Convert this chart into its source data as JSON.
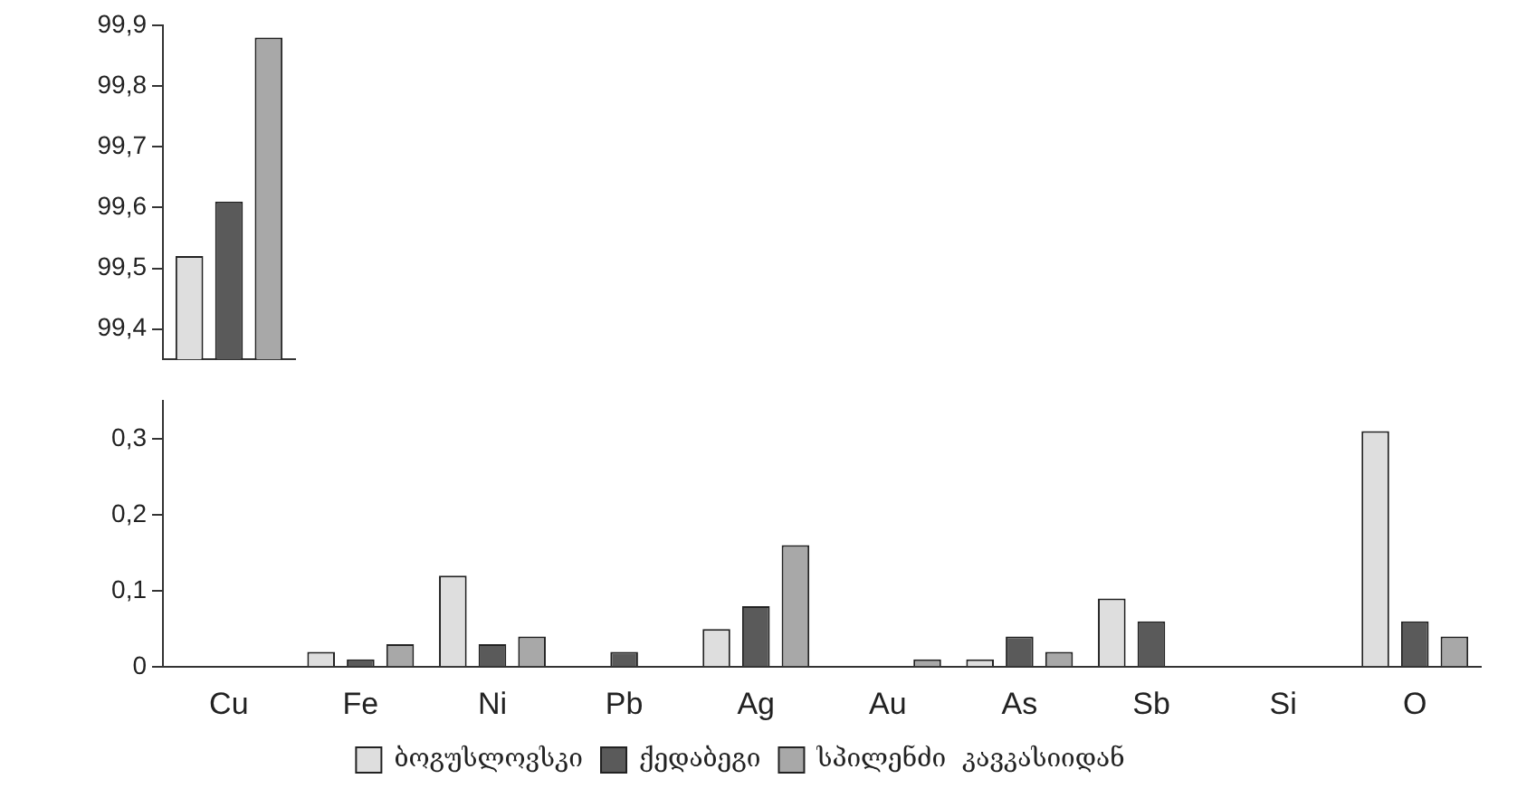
{
  "chart_data": [
    {
      "type": "bar",
      "categories": [
        null
      ],
      "series": [
        {
          "color": "#dedede",
          "values": [
            99.52
          ]
        },
        {
          "color": "#5a5a5a",
          "values": [
            99.61
          ]
        },
        {
          "color": "#a8a8a8",
          "values": [
            99.88
          ]
        }
      ],
      "ylim": [
        99.35,
        99.9
      ],
      "yticks": [
        {
          "value": 99.4,
          "label": "99,4"
        },
        {
          "value": 99.5,
          "label": "99,5"
        },
        {
          "value": 99.6,
          "label": "99,6"
        },
        {
          "value": 99.7,
          "label": "99,7"
        },
        {
          "value": 99.8,
          "label": "99,8"
        },
        {
          "value": 99.9,
          "label": "99,9"
        }
      ],
      "tick_labels": "y",
      "legend": false
    },
    {
      "type": "bar",
      "categories": [
        "Cu",
        "Fe",
        "Ni",
        "Pb",
        "Ag",
        "Au",
        "As",
        "Sb",
        "Si",
        "O"
      ],
      "series": [
        {
          "name": "ბოგუსლოვსკი",
          "color": "#dedede",
          "values": [
            null,
            0.02,
            0.12,
            0,
            0.05,
            0,
            0.01,
            0.09,
            null,
            0.31
          ]
        },
        {
          "name": "ქედაბეგი",
          "color": "#5a5a5a",
          "values": [
            null,
            0.01,
            0.03,
            0.02,
            0.08,
            0,
            0.04,
            0.06,
            0,
            0.06
          ]
        },
        {
          "name": "სპილენძი  კავკასიიდან",
          "color": "#a8a8a8",
          "values": [
            null,
            0.03,
            0.04,
            null,
            0.16,
            0.01,
            0.02,
            0,
            null,
            0.04
          ]
        }
      ],
      "ylim": [
        0,
        0.35
      ],
      "yticks": [
        {
          "value": 0,
          "label": "0"
        },
        {
          "value": 0.1,
          "label": "0,1"
        },
        {
          "value": 0.2,
          "label": "0,2"
        },
        {
          "value": 0.3,
          "label": "0,3"
        }
      ],
      "legend": "bottom"
    }
  ]
}
